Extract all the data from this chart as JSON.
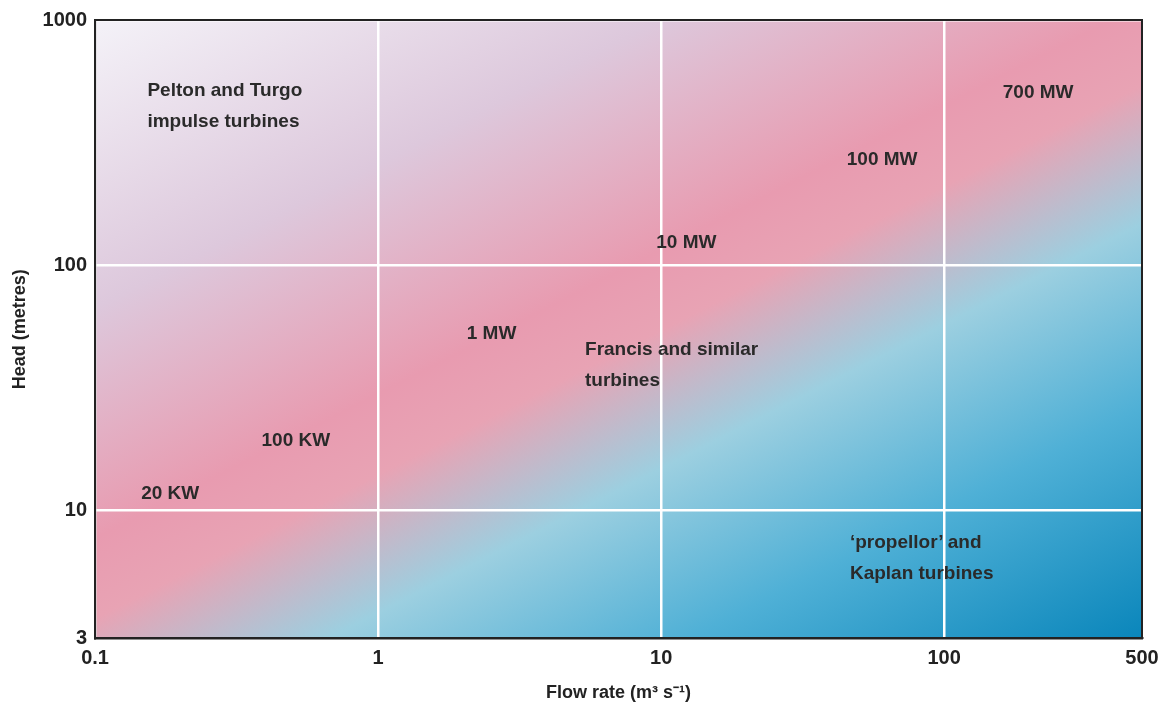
{
  "chart_data": {
    "type": "scatter",
    "xlabel": "Flow rate (m³ s⁻¹)",
    "ylabel": "Head (metres)",
    "log": "xy",
    "xlim": [
      0.1,
      500
    ],
    "ylim": [
      3,
      1000
    ],
    "xticks": [
      0.1,
      1,
      10,
      100,
      500
    ],
    "yticks": [
      3,
      10,
      100,
      1000
    ],
    "grid": true,
    "annotations": [
      "Pelton and Turgo\nimpulse turbines",
      "700 MW",
      "100 MW",
      "10 MW",
      "1 MW",
      "Francis and similar\nturbines",
      "100 KW",
      "20 KW",
      "‘propellor’ and\nKaplan turbines"
    ]
  }
}
